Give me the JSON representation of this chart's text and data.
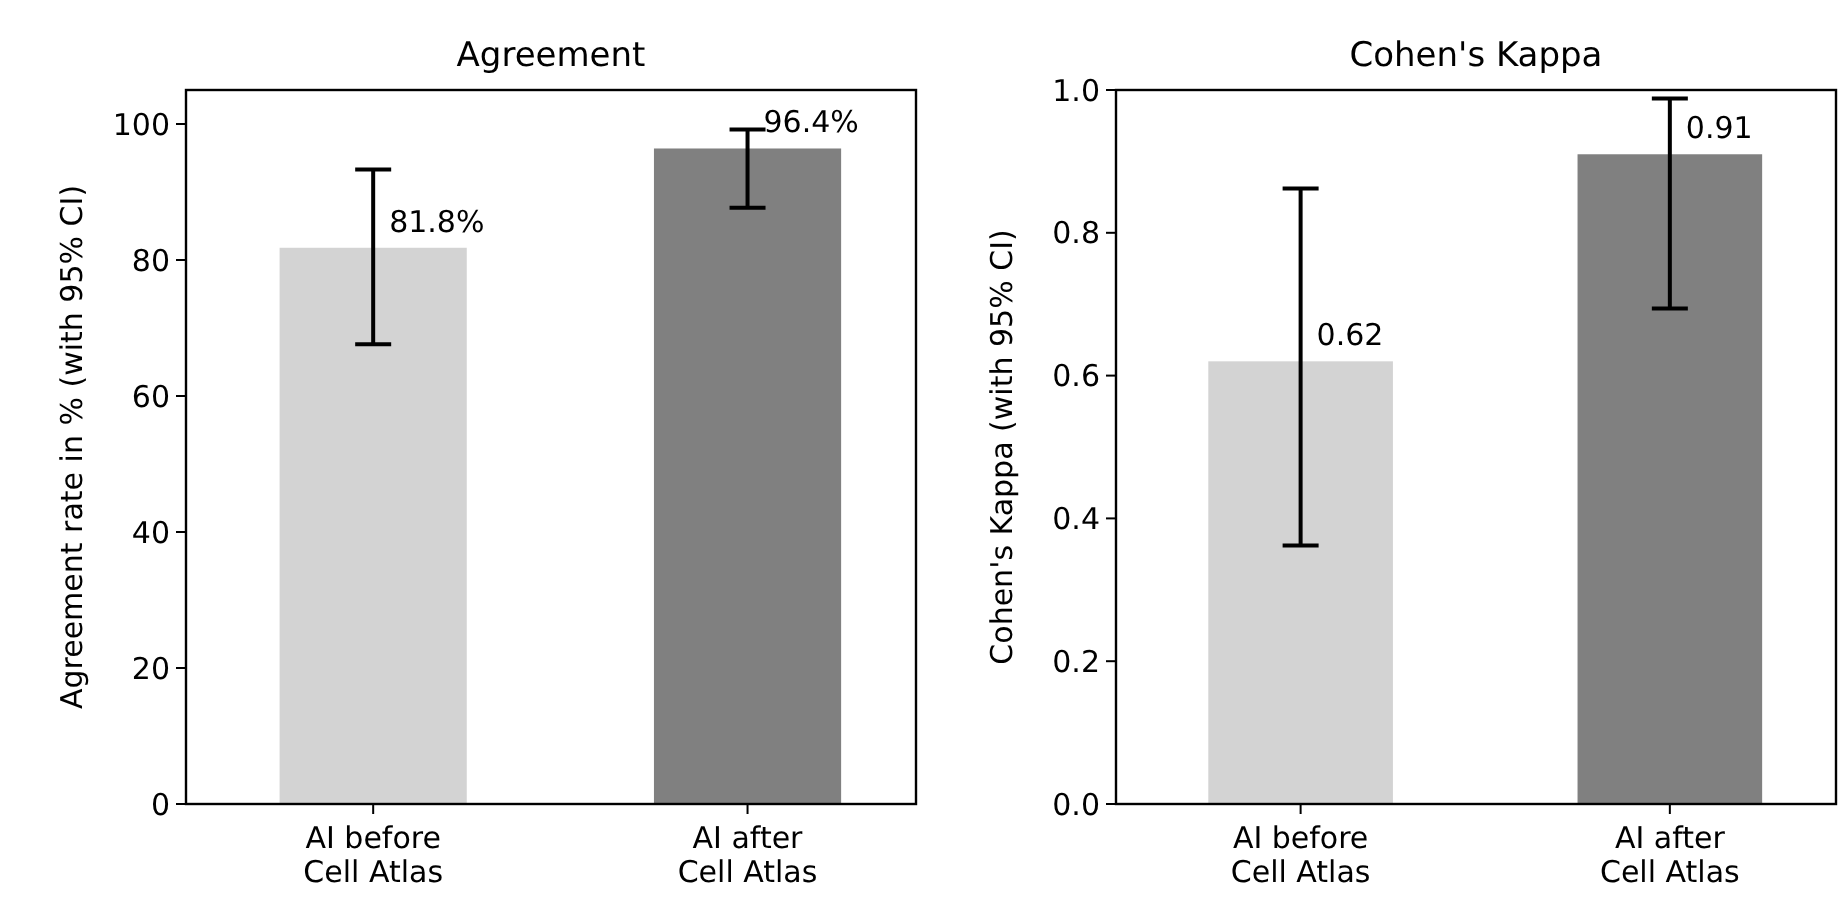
{
  "chart_data": [
    {
      "type": "bar",
      "title": "Agreement",
      "ylabel": "Agreement rate in % (with 95% CI)",
      "categories": [
        "AI before\nCell Atlas",
        "AI after\nCell Atlas"
      ],
      "values": [
        81.8,
        96.4
      ],
      "colors": [
        "#d3d3d3",
        "#808080"
      ],
      "errors": [
        [
          67.6,
          93.3
        ],
        [
          87.7,
          99.2
        ]
      ],
      "value_labels": [
        "81.8%",
        "96.4%"
      ],
      "ylim": [
        0,
        105
      ],
      "yticks": [
        0,
        20,
        40,
        60,
        80,
        100
      ],
      "grid": false
    },
    {
      "type": "bar",
      "title": "Cohen's Kappa",
      "ylabel": "Cohen's Kappa (with 95% CI)",
      "categories": [
        "AI before\nCell Atlas",
        "AI after\nCell Atlas"
      ],
      "values": [
        0.62,
        0.91
      ],
      "colors": [
        "#d3d3d3",
        "#808080"
      ],
      "errors": [
        [
          0.362,
          0.862
        ],
        [
          0.694,
          0.988
        ]
      ],
      "data_labels": true,
      "ylim": [
        0,
        1
      ],
      "yticks": [
        {
          "value": 0,
          "label": "0.0"
        },
        {
          "value": 0.2,
          "label": "0.2"
        },
        {
          "value": 0.4,
          "label": "0.4"
        },
        {
          "value": 0.6,
          "label": "0.6"
        },
        {
          "value": 0.8,
          "label": "0.8"
        },
        {
          "value": 1,
          "label": "1.0"
        }
      ],
      "grid": false
    }
  ]
}
